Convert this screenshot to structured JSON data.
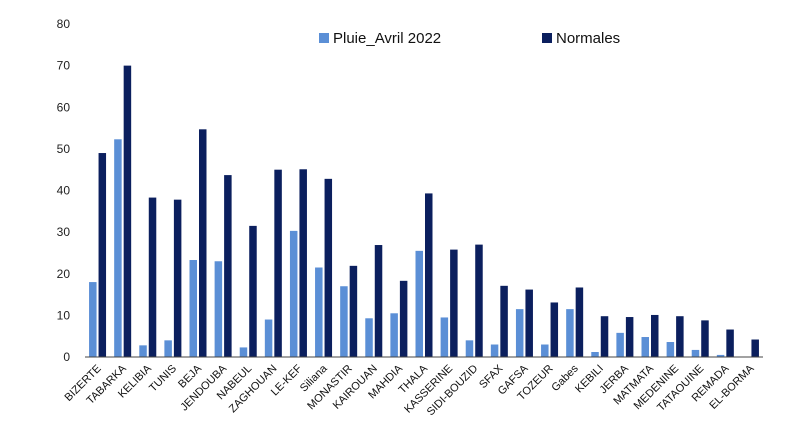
{
  "chart_data": {
    "type": "bar",
    "title": "",
    "xlabel": "",
    "ylabel": "",
    "ylim": [
      0,
      80
    ],
    "yticks": [
      0,
      10,
      20,
      30,
      40,
      50,
      60,
      70,
      80
    ],
    "grid": false,
    "legend_position": "top",
    "categories": [
      "BIZERTE",
      "TABARKA",
      "KELIBIA",
      "TUNIS",
      "BEJA",
      "JENDOUBA",
      "NABEUL",
      "ZAGHOUAN",
      "LE-KEF",
      "Siliana",
      "MONASTIR",
      "KAIROUAN",
      "MAHDIA",
      "THALA",
      "KASSERINE",
      "SIDI-BOUZID",
      "SFAX",
      "GAFSA",
      "TOZEUR",
      "Gabes",
      "KEBILI",
      "JERBA",
      "MATMATA",
      "MEDENINE",
      "TATAOUINE",
      "REMADA",
      "EL-BORMA"
    ],
    "series": [
      {
        "name": "Pluie_Avril 2022",
        "color": "#5b8fd6",
        "values": [
          18,
          52.3,
          2.8,
          4,
          23.3,
          23,
          2.3,
          9,
          30.3,
          21.5,
          17,
          9.3,
          10.5,
          25.5,
          9.5,
          4,
          3,
          11.5,
          3,
          11.5,
          1.2,
          5.8,
          4.8,
          3.6,
          1.7,
          0.5,
          0
        ]
      },
      {
        "name": "Normales",
        "color": "#0b1f5e",
        "values": [
          49,
          70,
          38.3,
          37.8,
          54.7,
          43.7,
          31.5,
          45,
          45.1,
          42.8,
          21.9,
          26.9,
          18.3,
          39.3,
          25.8,
          27,
          17.1,
          16.2,
          13.1,
          16.7,
          9.8,
          9.6,
          10.1,
          9.8,
          8.8,
          6.6,
          4.2
        ]
      }
    ]
  }
}
